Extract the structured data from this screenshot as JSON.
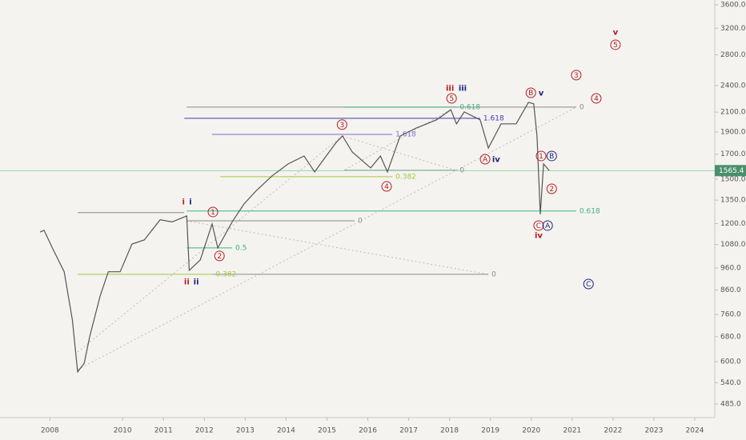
{
  "chart_data": {
    "type": "line",
    "log_scale": true,
    "xlim": [
      2007.0,
      2024.49
    ],
    "ylim": [
      453,
      3687
    ],
    "xticks": [
      {
        "value": 2008.22,
        "label": "2008"
      },
      2010,
      2011,
      2012,
      2013,
      2014,
      2015,
      2016,
      2017,
      2018,
      2019,
      2020,
      2021,
      2022,
      2023,
      2024
    ],
    "yticks": [
      {
        "value": 3600,
        "label": "3600.0"
      },
      {
        "value": 3200,
        "label": "3200.0"
      },
      {
        "value": 2800,
        "label": "2800.0"
      },
      {
        "value": 2400,
        "label": "2400.0"
      },
      {
        "value": 2100,
        "label": "2100.0"
      },
      {
        "value": 1900,
        "label": "1900.0"
      },
      {
        "value": 1700,
        "label": "1700.0"
      },
      {
        "value": 1500,
        "label": "1500.0"
      },
      {
        "value": 1350,
        "label": "1350.0"
      },
      {
        "value": 1200,
        "label": "1200.0"
      },
      {
        "value": 1080,
        "label": "1080.0"
      },
      {
        "value": 960,
        "label": "960.0"
      },
      {
        "value": 860,
        "label": "860.0"
      },
      {
        "value": 760,
        "label": "760.0"
      },
      {
        "value": 680,
        "label": "680.0"
      },
      {
        "value": 600,
        "label": "600.0"
      },
      {
        "value": 540,
        "label": "540.0"
      },
      {
        "value": 485,
        "label": "485.0"
      }
    ],
    "last_price": 1565.4,
    "x": [
      2007.98,
      2008.08,
      2008.28,
      2008.57,
      2008.77,
      2008.9,
      2009.06,
      2009.2,
      2009.45,
      2009.65,
      2009.94,
      2010.23,
      2010.53,
      2010.92,
      2011.21,
      2011.57,
      2011.63,
      2011.9,
      2012.19,
      2012.33,
      2012.68,
      2012.97,
      2013.27,
      2013.66,
      2014.05,
      2014.44,
      2014.7,
      2014.84,
      2015.23,
      2015.38,
      2015.62,
      2016.07,
      2016.31,
      2016.48,
      2016.79,
      2017.19,
      2017.68,
      2018.03,
      2018.17,
      2018.36,
      2018.75,
      2018.95,
      2019.26,
      2019.63,
      2019.93,
      2020.06,
      2020.14,
      2020.22,
      2020.3,
      2020.44
    ],
    "series": [
      {
        "color": "#555555",
        "values": [
          1150,
          1160,
          1062,
          942,
          740,
          570,
          595,
          683,
          834,
          942,
          942,
          1083,
          1105,
          1223,
          1210,
          1247,
          949,
          1000,
          1198,
          1062,
          1210,
          1324,
          1415,
          1525,
          1619,
          1685,
          1555,
          1619,
          1805,
          1863,
          1719,
          1587,
          1685,
          1555,
          1863,
          1940,
          2020,
          2125,
          1980,
          2102,
          2020,
          1754,
          1980,
          1980,
          2205,
          2190,
          1863,
          1257,
          1619,
          1565.4
        ]
      }
    ],
    "levels": [
      {
        "value": 2153,
        "from": 2011.57,
        "to": 2021.1,
        "color": "#8a8a8a",
        "label": "0"
      },
      {
        "value": 2153,
        "from": 2015.42,
        "to": 2018.17,
        "color": "#3fb37f",
        "label": "0.618"
      },
      {
        "value": 2036,
        "from": 2011.51,
        "to": 2018.75,
        "color": "#3b3bb0",
        "label": "1.618"
      },
      {
        "value": 1878,
        "from": 2012.19,
        "to": 2016.6,
        "color": "#7e6fcf",
        "label": "1.618"
      },
      {
        "value": 1568,
        "from": 2015.42,
        "to": 2018.17,
        "color": "#8a8a8a",
        "label": "0"
      },
      {
        "value": 1518,
        "from": 2012.39,
        "to": 2016.6,
        "color": "#a8c83a",
        "label": "0.382"
      },
      {
        "value": 1278,
        "from": 2011.57,
        "to": 2021.1,
        "color": "#3fb37f",
        "label": "0.618"
      },
      {
        "value": 1268,
        "from": 2008.9,
        "to": 2011.51,
        "color": "#8a8a8a"
      },
      {
        "value": 1217,
        "from": 2011.57,
        "to": 2015.68,
        "color": "#8a8a8a",
        "label": "0"
      },
      {
        "value": 1062,
        "from": 2011.57,
        "to": 2012.68,
        "color": "#3fb37f",
        "label": "0.5"
      },
      {
        "value": 930,
        "from": 2012.2,
        "to": 2018.95,
        "color": "#8a8a8a",
        "label": "0"
      },
      {
        "value": 930,
        "from": 2008.9,
        "to": 2012.2,
        "color": "#a8c83a",
        "label": "0.382"
      }
    ],
    "annotations": [
      {
        "text": "iii",
        "x": 2018.01,
        "y": 2371,
        "color": "#b71c1c"
      },
      {
        "text": "iii",
        "x": 2018.32,
        "y": 2371,
        "color": "#1a237e"
      },
      {
        "text": "5",
        "x": 2018.05,
        "y": 2250,
        "color": "#b71c1c",
        "circled": true
      },
      {
        "text": "B",
        "x": 2019.99,
        "y": 2314,
        "color": "#b71c1c",
        "circled": true
      },
      {
        "text": "v",
        "x": 2020.24,
        "y": 2314,
        "color": "#1a237e"
      },
      {
        "text": "3",
        "x": 2021.1,
        "y": 2529,
        "color": "#b71c1c",
        "circled": true
      },
      {
        "text": "4",
        "x": 2021.59,
        "y": 2250,
        "color": "#b71c1c",
        "circled": true
      },
      {
        "text": "v",
        "x": 2022.06,
        "y": 3141,
        "color": "#b71c1c"
      },
      {
        "text": "5",
        "x": 2022.06,
        "y": 2945,
        "color": "#b71c1c",
        "circled": true
      },
      {
        "text": "3",
        "x": 2015.37,
        "y": 1972,
        "color": "#b71c1c",
        "circled": true
      },
      {
        "text": "A",
        "x": 2018.87,
        "y": 1658,
        "color": "#b71c1c",
        "circled": true
      },
      {
        "text": "iv",
        "x": 2019.14,
        "y": 1658,
        "color": "#1a237e"
      },
      {
        "text": "1",
        "x": 2020.24,
        "y": 1685,
        "color": "#b71c1c",
        "circled": true
      },
      {
        "text": "B",
        "x": 2020.5,
        "y": 1685,
        "color": "#1a237e",
        "circled": true
      },
      {
        "text": "2",
        "x": 2020.5,
        "y": 1429,
        "color": "#b71c1c",
        "circled": true
      },
      {
        "text": "C",
        "x": 2020.18,
        "y": 1188,
        "color": "#b71c1c",
        "circled": true
      },
      {
        "text": "A",
        "x": 2020.4,
        "y": 1188,
        "color": "#1a237e",
        "circled": true
      },
      {
        "text": "iv",
        "x": 2020.18,
        "y": 1132,
        "color": "#b71c1c"
      },
      {
        "text": "C",
        "x": 2021.4,
        "y": 886,
        "color": "#1a237e",
        "circled": true
      },
      {
        "text": "i",
        "x": 2011.49,
        "y": 1341,
        "color": "#b71c1c"
      },
      {
        "text": "i",
        "x": 2011.66,
        "y": 1341,
        "color": "#1a237e"
      },
      {
        "text": "1",
        "x": 2012.21,
        "y": 1272,
        "color": "#b71c1c",
        "circled": true
      },
      {
        "text": "2",
        "x": 2012.37,
        "y": 1020,
        "color": "#b71c1c",
        "circled": true
      },
      {
        "text": "ii",
        "x": 2011.57,
        "y": 897,
        "color": "#b71c1c"
      },
      {
        "text": "ii",
        "x": 2011.8,
        "y": 897,
        "color": "#1a237e"
      },
      {
        "text": "4",
        "x": 2016.46,
        "y": 1446,
        "color": "#b71c1c",
        "circled": true
      }
    ]
  }
}
